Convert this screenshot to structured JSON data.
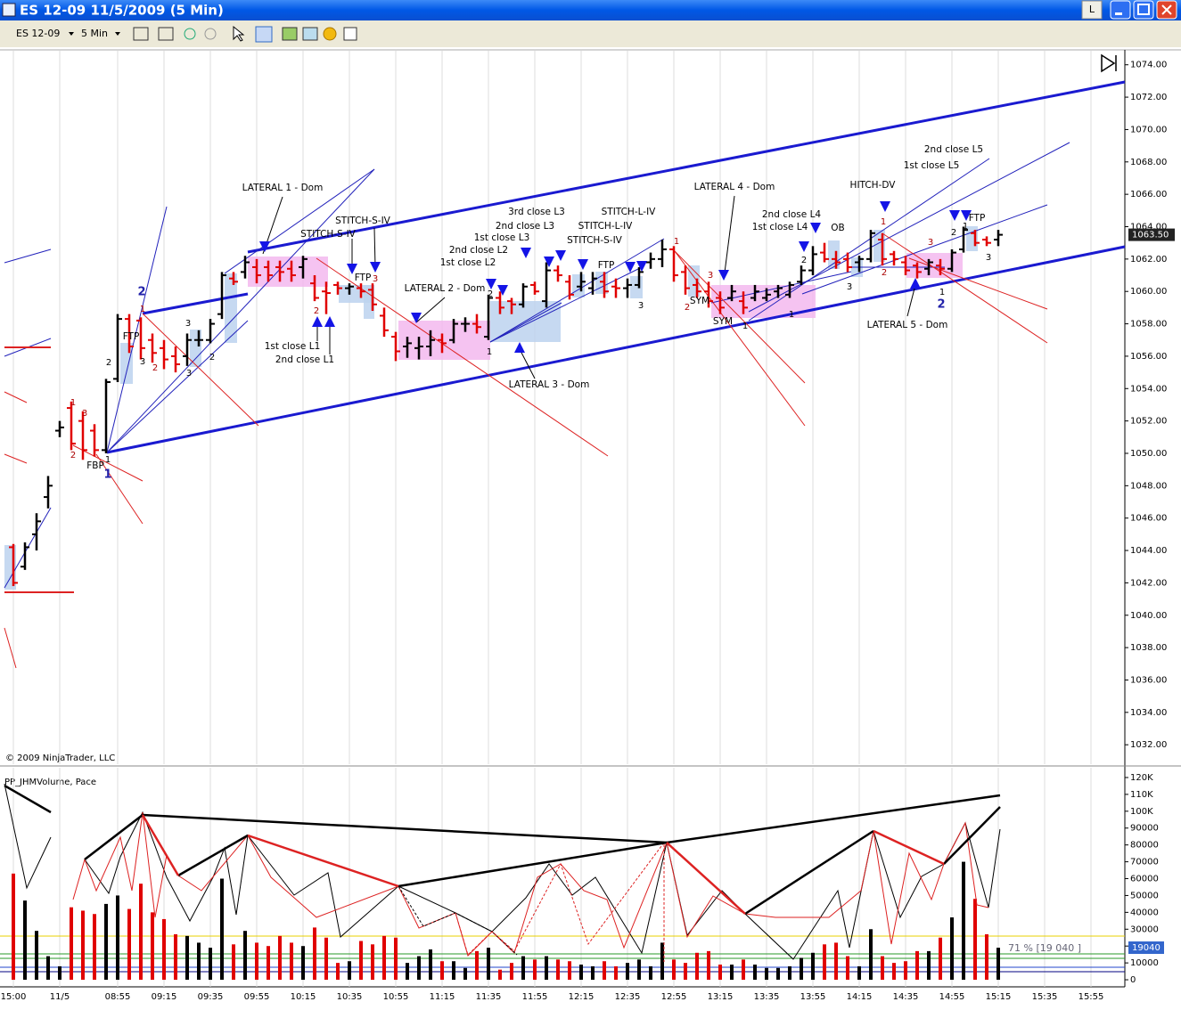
{
  "window": {
    "title": "ES 12-09  11/5/2009 (5 Min)",
    "button": "L"
  },
  "toolbar": {
    "instrument": "ES 12-09",
    "interval": "5 Min"
  },
  "copyright": "© 2009 NinjaTrader, LLC",
  "chart_data": [
    {
      "type": "ohlc",
      "categories": [
        "15:00",
        null,
        null,
        null,
        "11/5",
        null,
        null,
        null,
        null,
        "08:55",
        null,
        null,
        null,
        "09:15",
        null,
        null,
        null,
        "09:35",
        null,
        null,
        null,
        "09:55",
        null,
        null,
        null,
        "10:15",
        null,
        null,
        null,
        "10:35",
        null,
        null,
        null,
        "10:55",
        null,
        null,
        null,
        "11:15",
        null,
        null,
        null,
        "11:35",
        null,
        null,
        null,
        "11:55",
        null,
        null,
        null,
        "12:15",
        null,
        null,
        null,
        "12:35",
        null,
        null,
        null,
        "12:55",
        null,
        null,
        null,
        "13:15",
        null,
        null,
        null,
        "13:35",
        null,
        null,
        null,
        "13:55",
        null,
        null,
        null,
        "14:15",
        null,
        null,
        null,
        "14:35",
        null,
        null,
        null,
        "14:55",
        null,
        null,
        null,
        "15:15",
        null,
        null,
        null,
        "15:35",
        null,
        null,
        null,
        "15:55"
      ],
      "open": [
        1044.2,
        1043,
        1045,
        1047.3,
        1051.4,
        1052.8,
        1052,
        1051.4,
        1050.2,
        1054.6,
        1058.3,
        1058.2,
        1057,
        1056.5,
        1056,
        1056,
        1057,
        1057,
        1058.6,
        1060.8,
        1061.2,
        1061.5,
        1061.5,
        1061.5,
        1061.4,
        1061.5,
        1060.5,
        1060,
        1060.4,
        1060.2,
        1060.2,
        1060.1,
        1058.5,
        1057.2,
        1056.6,
        1056.5,
        1056.6,
        1057,
        1057,
        1058,
        1058,
        1057.2,
        1059.6,
        1059.4,
        1059.2,
        1060.4,
        1059.4,
        1061.3,
        1060.6,
        1060.3,
        1060.2,
        1060.6,
        1060.3,
        1060.2,
        1060.4,
        1061.8,
        1062,
        1062.6,
        1061.2,
        1060.4,
        1060,
        1059.6,
        1059.6,
        1059.4,
        1059.6,
        1059.6,
        1060,
        1059.8,
        1060.6,
        1061.3,
        1062.4,
        1062,
        1062,
        1061.8,
        1062,
        1063.2,
        1062.3,
        1061.8,
        1061.6,
        1061.4,
        1061.6,
        1061.4,
        1062.6,
        1063.6,
        1063.2,
        1063.2,
        null,
        null,
        null,
        null,
        null,
        null,
        null,
        null
      ],
      "high": [
        1044.4,
        1044.5,
        1046.3,
        1048.6,
        1052,
        1053.2,
        1052.6,
        1051.8,
        1054.6,
        1058.6,
        1058.6,
        1058.4,
        1057.4,
        1057,
        1056.6,
        1057.4,
        1057.6,
        1058.3,
        1061.2,
        1061.2,
        1062.2,
        1062,
        1061.9,
        1061.9,
        1061.9,
        1062.2,
        1061,
        1060.6,
        1060.6,
        1060.5,
        1060.5,
        1060.5,
        1059,
        1057.5,
        1057.2,
        1057.2,
        1057.6,
        1057.4,
        1058.3,
        1058.4,
        1058.6,
        1059.8,
        1060,
        1059.6,
        1060.5,
        1060.6,
        1061.8,
        1061.6,
        1061,
        1061.2,
        1061.2,
        1061.2,
        1060.8,
        1060.8,
        1061.5,
        1062.4,
        1063.2,
        1062.8,
        1061.6,
        1060.8,
        1060.6,
        1060,
        1060.4,
        1060,
        1060.4,
        1060.2,
        1060.4,
        1060.6,
        1061.6,
        1062.8,
        1063,
        1062.5,
        1062.4,
        1062.2,
        1063.8,
        1063.6,
        1062.5,
        1062.2,
        1061.8,
        1062,
        1062,
        1062.6,
        1064,
        1063.8,
        1063.4,
        1063.8,
        null,
        null,
        null,
        null,
        null,
        null,
        null,
        null
      ],
      "low": [
        1041.8,
        1042.8,
        1044,
        1046.6,
        1051,
        1050.2,
        1049.6,
        1049.8,
        1050,
        1054.4,
        1056.2,
        1055.8,
        1055.6,
        1055.2,
        1055,
        1055.4,
        1056.6,
        1056.8,
        1058.3,
        1060.4,
        1060.8,
        1060.5,
        1060.6,
        1060.6,
        1060.6,
        1060.8,
        1059.4,
        1058.6,
        1059.8,
        1059.8,
        1059.6,
        1058.8,
        1057.2,
        1055.7,
        1055.9,
        1055.8,
        1056,
        1056.2,
        1056.8,
        1057.5,
        1057.4,
        1057,
        1058.6,
        1058.6,
        1059,
        1059.8,
        1059,
        1060.6,
        1059.5,
        1060,
        1059.8,
        1059.6,
        1059.6,
        1059.6,
        1060.2,
        1061.4,
        1061.5,
        1060.6,
        1059.8,
        1059.6,
        1059,
        1058.6,
        1059.4,
        1058.6,
        1059.4,
        1059.4,
        1059.6,
        1059.6,
        1060.4,
        1061,
        1061.8,
        1061.4,
        1061.2,
        1061.2,
        1061.8,
        1061.6,
        1061.6,
        1061,
        1060.8,
        1061,
        1061,
        1061.2,
        1062.4,
        1062.8,
        1062.8,
        1062.8,
        null,
        null,
        null,
        null,
        null,
        null,
        null,
        null
      ],
      "close": [
        1042,
        1044.2,
        1045.8,
        1048,
        1051.6,
        1050.6,
        1050.2,
        1050.2,
        1054.4,
        1058.3,
        1056.6,
        1056.5,
        1056.2,
        1055.8,
        1055.5,
        1057,
        1057,
        1058,
        1061,
        1060.6,
        1061.8,
        1061,
        1061,
        1061.2,
        1061,
        1062,
        1059.6,
        1059.9,
        1060.2,
        1060.3,
        1060,
        1059.2,
        1057.6,
        1056.3,
        1056.8,
        1056.6,
        1057,
        1056.8,
        1058,
        1058,
        1057.8,
        1059.6,
        1059,
        1059.2,
        1060.3,
        1060,
        1061.3,
        1061,
        1059.8,
        1060.6,
        1060.8,
        1060,
        1060.2,
        1060.4,
        1061.2,
        1062,
        1062.6,
        1061,
        1060.2,
        1060,
        1059.4,
        1059,
        1060,
        1059,
        1060,
        1059.8,
        1060.2,
        1060.4,
        1061.3,
        1062.3,
        1062,
        1061.8,
        1061.5,
        1062,
        1063.6,
        1062,
        1062,
        1061.3,
        1061.2,
        1061.8,
        1061.4,
        1062.4,
        1063.8,
        1063,
        1063,
        1063.5,
        null,
        null,
        null,
        null,
        null,
        null,
        null,
        null
      ],
      "up_color": "#000000",
      "down_color": "#e00000",
      "ylim": [
        1030.8,
        1074.7
      ],
      "yticks": [
        {
          "value": 1032,
          "label": "1032.00"
        },
        {
          "value": 1034,
          "label": "1034.00"
        },
        {
          "value": 1036,
          "label": "1036.00"
        },
        {
          "value": 1038,
          "label": "1038.00"
        },
        {
          "value": 1040,
          "label": "1040.00"
        },
        {
          "value": 1042,
          "label": "1042.00"
        },
        {
          "value": 1044,
          "label": "1044.00"
        },
        {
          "value": 1046,
          "label": "1046.00"
        },
        {
          "value": 1048,
          "label": "1048.00"
        },
        {
          "value": 1050,
          "label": "1050.00"
        },
        {
          "value": 1052,
          "label": "1052.00"
        },
        {
          "value": 1054,
          "label": "1054.00"
        },
        {
          "value": 1056,
          "label": "1056.00"
        },
        {
          "value": 1058,
          "label": "1058.00"
        },
        {
          "value": 1060,
          "label": "1060.00"
        },
        {
          "value": 1062,
          "label": "1062.00"
        },
        {
          "value": 1064,
          "label": "1064.00"
        },
        {
          "value": 1066,
          "label": "1066.00"
        },
        {
          "value": 1068,
          "label": "1068.00"
        },
        {
          "value": 1070,
          "label": "1070.00"
        },
        {
          "value": 1072,
          "label": "1072.00"
        },
        {
          "value": 1074,
          "label": "1074.00"
        }
      ],
      "grid": true,
      "last_price": {
        "value": 1063.5,
        "label": "1063.50"
      },
      "annotations": [
        "LATERAL 1 - Dom",
        "STITCH-S-IV",
        "STITCH-S-IV",
        "FTP",
        "1st close L1",
        "2nd close L1",
        "LATERAL 2 - Dom",
        "3rd close L3",
        "2nd close L3",
        "1st close L3",
        "2nd close L2",
        "1st close L2",
        "LATERAL 3 - Dom",
        "STITCH-L-IV",
        "STITCH-L-IV",
        "STITCH-S-IV",
        "FTP",
        "LATERAL 4 - Dom",
        "SYM",
        "SYM",
        "2nd close L4",
        "1st close L4",
        "OB",
        "HITCH-DV",
        "2nd close L5",
        "1st close L5",
        "FTP",
        "LATERAL 5 - Dom",
        "FBP",
        "FTP"
      ],
      "point_labels": [
        "1",
        "3",
        "2",
        "1",
        "1",
        "2",
        "3",
        "2",
        "1",
        "2",
        "3",
        "2",
        "3",
        "2",
        "1",
        "2",
        "3",
        "1",
        "3",
        "2",
        "1",
        "1",
        "2",
        "3",
        "1",
        "2",
        "3",
        "1",
        "2",
        "3",
        "2",
        "1",
        "3"
      ]
    },
    {
      "type": "bar",
      "title": "PP_JHMVolume, Pace",
      "values": [
        63000,
        47000,
        29000,
        14000,
        8000,
        43000,
        41000,
        39000,
        45000,
        50000,
        42000,
        57000,
        40000,
        36000,
        27000,
        26000,
        22000,
        19000,
        60000,
        21000,
        29000,
        22000,
        20000,
        26000,
        22000,
        20000,
        31000,
        25000,
        10000,
        11000,
        23000,
        21000,
        26000,
        25000,
        10000,
        14000,
        18000,
        11000,
        11000,
        7000,
        17000,
        19000,
        6000,
        10000,
        14000,
        12000,
        14000,
        12000,
        11000,
        9000,
        8000,
        11000,
        8000,
        10000,
        12000,
        8000,
        22000,
        12000,
        10000,
        16000,
        17000,
        9000,
        9000,
        12000,
        9000,
        7000,
        7000,
        8000,
        13000,
        16000,
        21000,
        22000,
        14000,
        8000,
        30000,
        14000,
        10000,
        11000,
        17000,
        17000,
        25000,
        37000,
        70000,
        48000,
        27000,
        19000,
        null,
        null,
        null,
        null,
        null,
        null,
        null,
        null
      ],
      "ylim": [
        -4200,
        125800
      ],
      "yticks": [
        0,
        10000,
        20000,
        30000,
        40000,
        50000,
        60000,
        70000,
        80000,
        90000,
        {
          "value": 100000,
          "label": "100K"
        },
        {
          "value": 110000,
          "label": "110K"
        },
        {
          "value": 120000,
          "label": "120K"
        }
      ],
      "pace_label": "71 % [19 040 ]",
      "last_value": 19040
    }
  ]
}
